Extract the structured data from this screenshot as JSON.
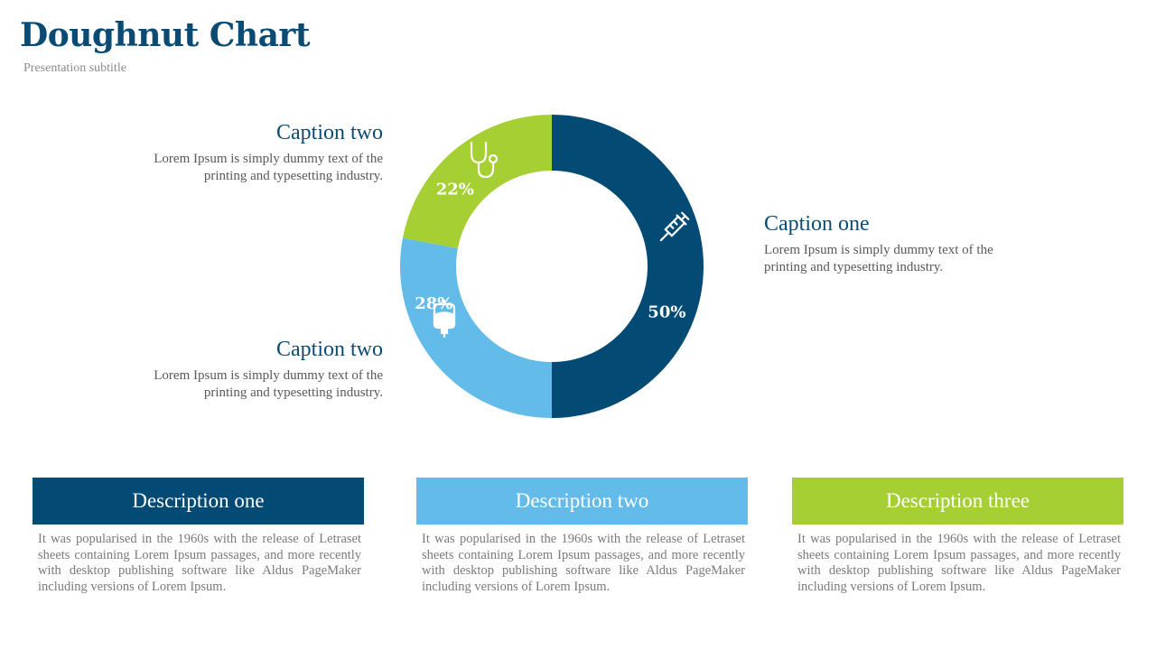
{
  "header": {
    "title": "Doughnut Chart",
    "subtitle": "Presentation subtitle"
  },
  "captions": {
    "left_top": {
      "title": "Caption two",
      "text": "Lorem Ipsum is simply dummy text of the printing and typesetting industry."
    },
    "left_bottom": {
      "title": "Caption two",
      "text": "Lorem Ipsum is simply dummy text of the printing and typesetting industry."
    },
    "right": {
      "title": "Caption one",
      "text": "Lorem Ipsum is simply dummy text of the printing and typesetting industry."
    }
  },
  "chart_data": {
    "type": "pie",
    "donut": true,
    "slices": [
      {
        "value": 50,
        "label": "50%",
        "color": "#034a75",
        "icon": "syringe-icon"
      },
      {
        "value": 28,
        "label": "28%",
        "color": "#63bbea",
        "icon": "iv-bag-icon"
      },
      {
        "value": 22,
        "label": "22%",
        "color": "#a6cf34",
        "icon": "stethoscope-icon"
      }
    ]
  },
  "descriptions": [
    {
      "title": "Description one",
      "color": "#034a75",
      "text": "It was popularised in the 1960s with the release of Letraset sheets containing Lorem Ipsum passages, and more recently with desktop publishing software like Aldus PageMaker including versions of Lorem Ipsum."
    },
    {
      "title": "Description two",
      "color": "#63bbea",
      "text": "It was popularised in the 1960s with the release of Letraset sheets containing Lorem Ipsum passages, and more recently with desktop publishing software like Aldus PageMaker including versions of Lorem Ipsum."
    },
    {
      "title": "Description three",
      "color": "#a6cf34",
      "text": "It was popularised in the 1960s with the release of Letraset sheets containing Lorem Ipsum passages, and more recently with desktop publishing software like Aldus PageMaker including versions of Lorem Ipsum."
    }
  ]
}
